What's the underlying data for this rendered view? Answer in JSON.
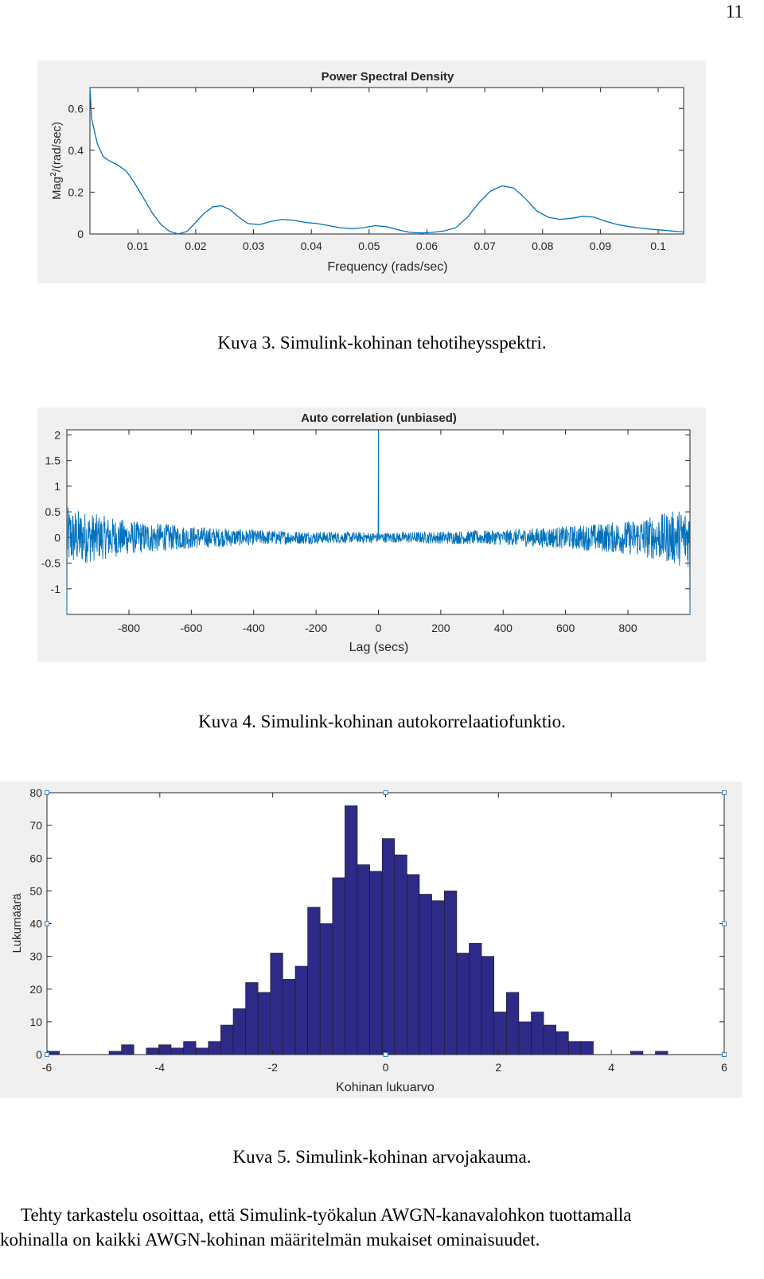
{
  "page_number": "11",
  "figures": [
    {
      "caption": "Kuva 3. Simulink-kohinan tehotiheysspektri.",
      "chart_data": {
        "type": "line",
        "title": "Power Spectral Density",
        "xlabel": "Frequency (rads/sec)",
        "ylabel": "Mag²/(rad/sec)",
        "ylabel_base": "Mag",
        "ylabel_sup": "2",
        "ylabel_rest": "/(rad/sec)",
        "xlim": [
          0.0017,
          0.1044
        ],
        "ylim": [
          0,
          0.7
        ],
        "xticks": [
          0.01,
          0.02,
          0.03,
          0.04,
          0.05,
          0.06,
          0.07,
          0.08,
          0.09,
          0.1
        ],
        "xtick_labels": [
          "0.01",
          "0.02",
          "0.03",
          "0.04",
          "0.05",
          "0.06",
          "0.07",
          "0.08",
          "0.09",
          "0.1"
        ],
        "yticks": [
          0,
          0.2,
          0.4,
          0.6
        ],
        "ytick_labels": [
          "0",
          "0.2",
          "0.4",
          "0.6"
        ],
        "grid": false,
        "color": "#0072bd",
        "x": [
          0.0017,
          0.002,
          0.003,
          0.004,
          0.005,
          0.0065,
          0.008,
          0.0095,
          0.011,
          0.0125,
          0.014,
          0.0155,
          0.017,
          0.0185,
          0.02,
          0.0215,
          0.023,
          0.0245,
          0.026,
          0.0275,
          0.029,
          0.031,
          0.033,
          0.035,
          0.037,
          0.039,
          0.041,
          0.043,
          0.045,
          0.047,
          0.049,
          0.051,
          0.053,
          0.055,
          0.057,
          0.059,
          0.061,
          0.063,
          0.065,
          0.067,
          0.069,
          0.071,
          0.073,
          0.075,
          0.077,
          0.079,
          0.081,
          0.083,
          0.085,
          0.087,
          0.089,
          0.091,
          0.093,
          0.095,
          0.097,
          0.099,
          0.101,
          0.103,
          0.1044
        ],
        "y": [
          0.7,
          0.55,
          0.43,
          0.37,
          0.35,
          0.33,
          0.3,
          0.24,
          0.17,
          0.1,
          0.045,
          0.012,
          0.0,
          0.012,
          0.055,
          0.1,
          0.13,
          0.135,
          0.115,
          0.08,
          0.05,
          0.045,
          0.06,
          0.07,
          0.065,
          0.055,
          0.05,
          0.04,
          0.03,
          0.025,
          0.03,
          0.04,
          0.035,
          0.02,
          0.008,
          0.005,
          0.008,
          0.015,
          0.03,
          0.08,
          0.15,
          0.205,
          0.23,
          0.22,
          0.17,
          0.11,
          0.08,
          0.07,
          0.075,
          0.085,
          0.08,
          0.06,
          0.045,
          0.035,
          0.028,
          0.022,
          0.018,
          0.013,
          0.01
        ]
      }
    },
    {
      "caption": "Kuva 4. Simulink-kohinan autokorrelaatiofunktio.",
      "chart_data": {
        "type": "line",
        "title": "Auto correlation (unbiased)",
        "xlabel": "Lag (secs)",
        "ylabel": "",
        "xlim": [
          -999,
          999
        ],
        "ylim": [
          -1.5,
          2.1
        ],
        "xticks": [
          -800,
          -600,
          -400,
          -200,
          0,
          200,
          400,
          600,
          800
        ],
        "xtick_labels": [
          "-800",
          "-600",
          "-400",
          "-200",
          "0",
          "200",
          "400",
          "600",
          "800"
        ],
        "yticks": [
          -1,
          -0.5,
          0,
          0.5,
          1,
          1.5,
          2
        ],
        "ytick_labels": [
          "-1",
          "-0.5",
          "0",
          "0.5",
          "1",
          "1.5",
          "2"
        ],
        "grid": false,
        "color": "#0072bd",
        "peak": {
          "lag": 0,
          "value": 2.1
        },
        "edge_value": -1.5,
        "noise_envelope": {
          "lag": [
            -999,
            -900,
            -800,
            -600,
            -400,
            -200,
            0,
            200,
            400,
            600,
            800,
            900,
            999
          ],
          "amplitude": [
            0.6,
            0.45,
            0.33,
            0.22,
            0.15,
            0.12,
            0.1,
            0.12,
            0.15,
            0.22,
            0.33,
            0.45,
            0.6
          ]
        }
      }
    },
    {
      "caption": "Kuva 5. Simulink-kohinan arvojakauma.",
      "chart_data": {
        "type": "bar",
        "title": "",
        "xlabel": "Kohinan lukuarvo",
        "ylabel": "Lukumäärä",
        "xlim": [
          -6,
          6
        ],
        "ylim": [
          0,
          80
        ],
        "xticks": [
          -6,
          -4,
          -2,
          0,
          2,
          4,
          6
        ],
        "xtick_labels": [
          "-6",
          "-4",
          "-2",
          "0",
          "2",
          "4",
          "6"
        ],
        "yticks": [
          0,
          10,
          20,
          30,
          40,
          50,
          60,
          70,
          80
        ],
        "ytick_labels": [
          "0",
          "10",
          "20",
          "30",
          "40",
          "50",
          "60",
          "70",
          "80"
        ],
        "grid": false,
        "bar_color": "#2e2a87",
        "bin_edges_start": -6.0,
        "bin_width": 0.22,
        "counts": [
          1,
          0,
          0,
          0,
          0,
          1,
          3,
          0,
          2,
          3,
          2,
          4,
          2,
          4,
          9,
          14,
          22,
          19,
          31,
          23,
          27,
          45,
          40,
          54,
          76,
          58,
          56,
          66,
          61,
          55,
          49,
          47,
          50,
          31,
          34,
          30,
          13,
          19,
          10,
          13,
          9,
          7,
          4,
          4,
          0,
          0,
          0,
          1,
          0,
          1,
          0
        ]
      }
    }
  ],
  "body_text": {
    "line1": "Tehty tarkastelu osoittaa, että Simulink-työkalun AWGN-kanavalohkon tuottamalla",
    "line2": "kohinalla on kaikki AWGN-kohinan määritelmän mukaiset ominaisuudet."
  }
}
